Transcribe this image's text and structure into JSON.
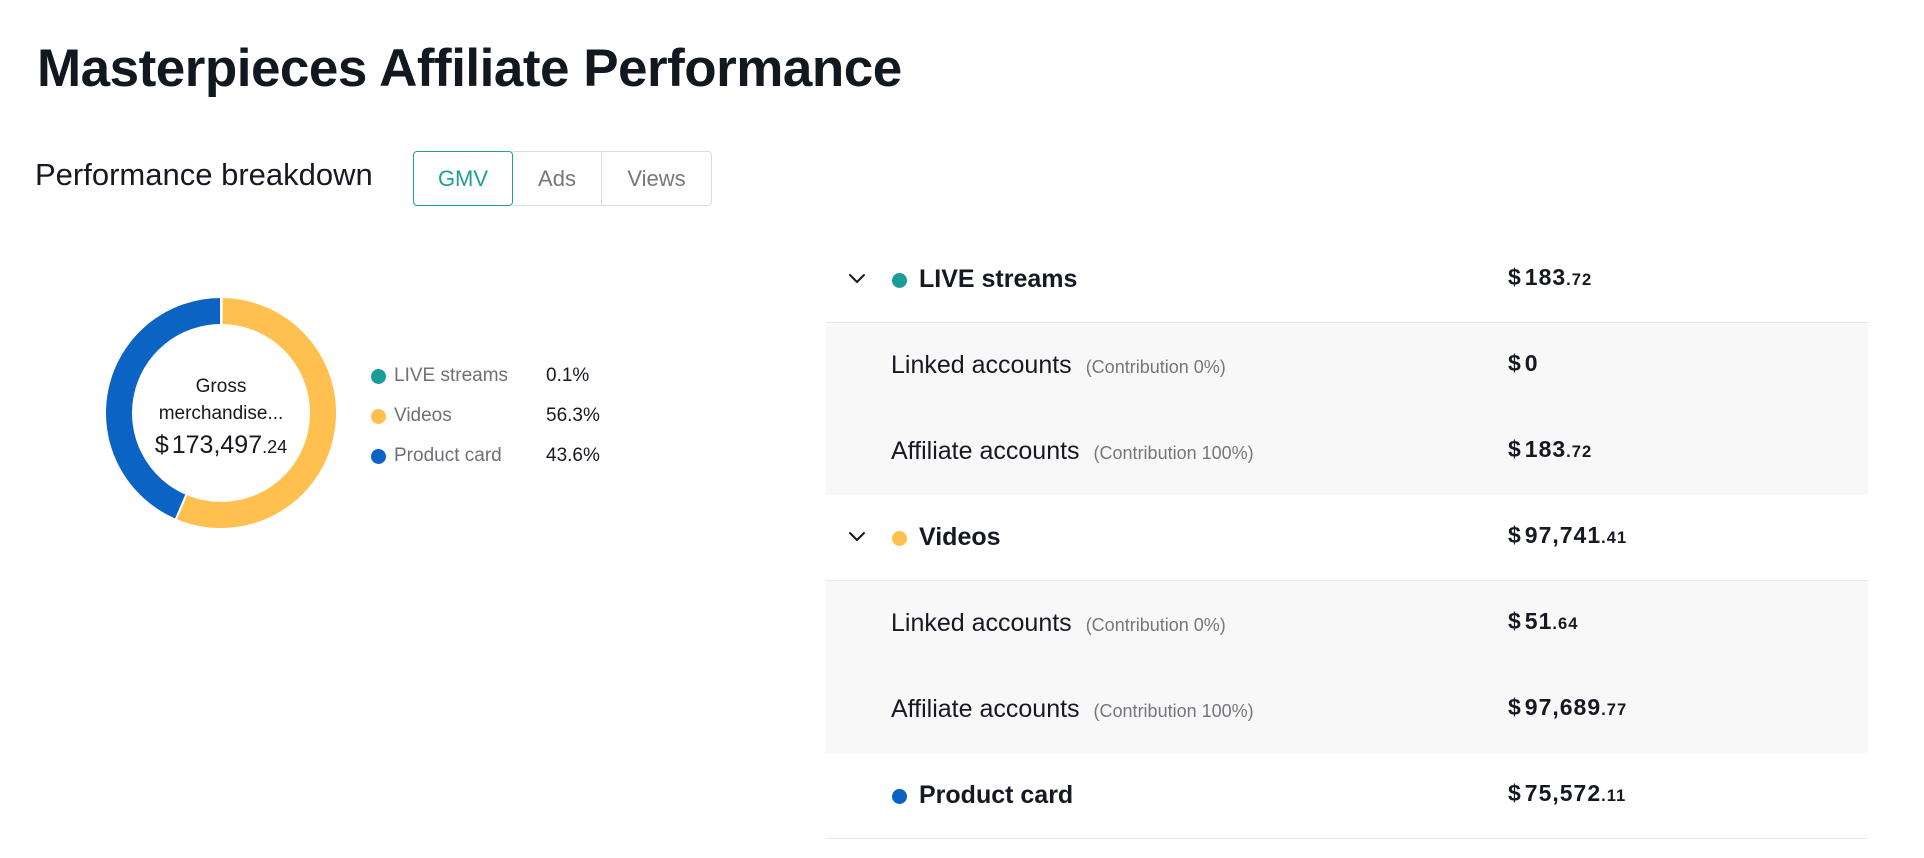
{
  "page": {
    "title": "Masterpieces Affiliate Performance",
    "section_title": "Performance breakdown"
  },
  "tabs": [
    {
      "label": "GMV",
      "active": true
    },
    {
      "label": "Ads",
      "active": false
    },
    {
      "label": "Views",
      "active": false
    }
  ],
  "colors": {
    "live": "#1a9d97",
    "videos": "#ffc04f",
    "product_card": "#0b63c4",
    "accent": "#1f9f97"
  },
  "chart_data": {
    "type": "pie",
    "center_label": "Gross merchandise...",
    "center_value_currency": "$",
    "center_value_main": "173,497",
    "center_value_cents": ".24",
    "categories": [
      "LIVE streams",
      "Videos",
      "Product card"
    ],
    "values": [
      0.1,
      56.3,
      43.6
    ],
    "value_labels": [
      "0.1%",
      "56.3%",
      "43.6%"
    ]
  },
  "table": {
    "rows": [
      {
        "type": "parent",
        "name": "LIVE streams",
        "color": "#1a9d97",
        "expandable": true,
        "currency": "$",
        "main": "183",
        "cents": ".72"
      },
      {
        "type": "child",
        "name": "Linked accounts",
        "contribution": "(Contribution 0%)",
        "currency": "$",
        "main": "0",
        "cents": ""
      },
      {
        "type": "child",
        "name": "Affiliate accounts",
        "contribution": "(Contribution 100%)",
        "currency": "$",
        "main": "183",
        "cents": ".72"
      },
      {
        "type": "parent",
        "name": "Videos",
        "color": "#ffc04f",
        "expandable": true,
        "currency": "$",
        "main": "97,741",
        "cents": ".41"
      },
      {
        "type": "child",
        "name": "Linked accounts",
        "contribution": "(Contribution 0%)",
        "currency": "$",
        "main": "51",
        "cents": ".64"
      },
      {
        "type": "child",
        "name": "Affiliate accounts",
        "contribution": "(Contribution 100%)",
        "currency": "$",
        "main": "97,689",
        "cents": ".77"
      },
      {
        "type": "parent",
        "name": "Product card",
        "color": "#0b63c4",
        "expandable": false,
        "currency": "$",
        "main": "75,572",
        "cents": ".11"
      }
    ]
  }
}
